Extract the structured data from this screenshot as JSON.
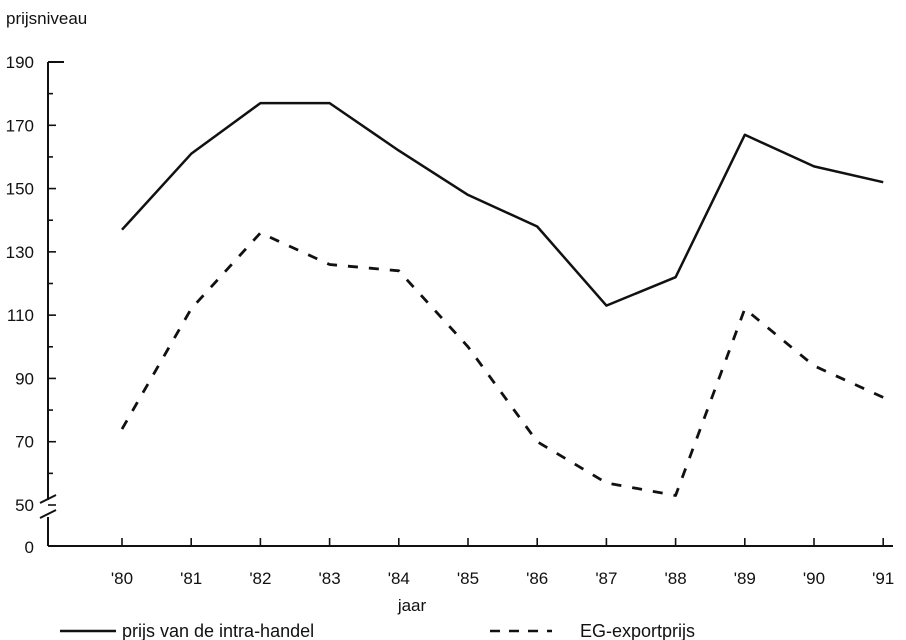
{
  "chart_data": {
    "type": "line",
    "ylabel": "prijsniveau",
    "xlabel": "jaar",
    "categories": [
      "'80",
      "'81",
      "'82",
      "'83",
      "'84",
      "'85",
      "'86",
      "'87",
      "'88",
      "'89",
      "'90",
      "'91"
    ],
    "y_ticks": [
      50,
      70,
      90,
      110,
      130,
      150,
      170,
      190
    ],
    "y_break_label": "0",
    "ylim": [
      50,
      190
    ],
    "y_axis_break": true,
    "grid": false,
    "legend_position": "bottom",
    "series": [
      {
        "name": "prijs van de intra-handel",
        "style": "solid",
        "values": [
          137,
          161,
          177,
          177,
          162,
          148,
          138,
          113,
          122,
          167,
          157,
          152
        ]
      },
      {
        "name": "EG-exportprijs",
        "style": "dashed",
        "values": [
          74,
          112,
          136,
          126,
          124,
          100,
          70,
          57,
          53,
          112,
          94,
          84
        ]
      }
    ]
  }
}
